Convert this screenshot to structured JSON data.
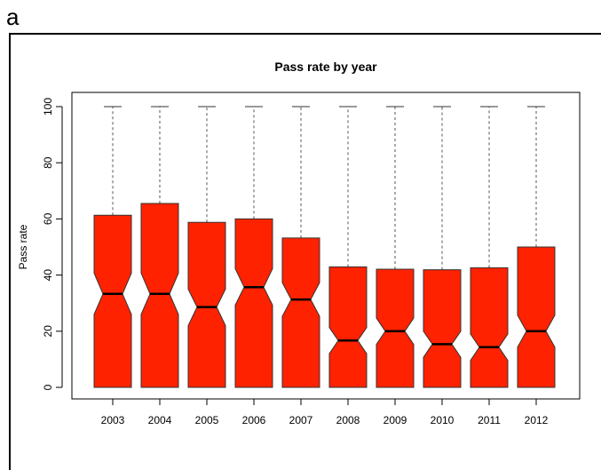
{
  "panel_label": "a",
  "colors": {
    "box_fill": "#ff2200",
    "box_stroke": "#333333",
    "axis": "#000000",
    "whisker": "#555555"
  },
  "chart_data": {
    "type": "box",
    "notched": true,
    "title": "Pass rate by year",
    "xlabel": "",
    "ylabel": "Pass rate",
    "ylim": [
      -4,
      104
    ],
    "yticks": [
      0,
      20,
      40,
      60,
      80,
      100
    ],
    "ytick_labels": [
      "0",
      "20",
      "40",
      "60",
      "80",
      "100"
    ],
    "categories": [
      "2003",
      "2004",
      "2005",
      "2006",
      "2007",
      "2008",
      "2009",
      "2010",
      "2011",
      "2012"
    ],
    "boxes": [
      {
        "category": "2003",
        "min": 0,
        "q1": 0,
        "median": 33.3,
        "q3": 61.3,
        "max": 100,
        "notch_low": 26,
        "notch_high": 40.7
      },
      {
        "category": "2004",
        "min": 0,
        "q1": 0,
        "median": 33.3,
        "q3": 65.5,
        "max": 100,
        "notch_low": 26,
        "notch_high": 40.7
      },
      {
        "category": "2005",
        "min": 0,
        "q1": 0,
        "median": 28.6,
        "q3": 58.8,
        "max": 100,
        "notch_low": 22,
        "notch_high": 35
      },
      {
        "category": "2006",
        "min": 0,
        "q1": 0,
        "median": 35.7,
        "q3": 60,
        "max": 100,
        "notch_low": 29.3,
        "notch_high": 42.3
      },
      {
        "category": "2007",
        "min": 0,
        "q1": 0,
        "median": 31.3,
        "q3": 53.2,
        "max": 100,
        "notch_low": 25.3,
        "notch_high": 37.3
      },
      {
        "category": "2008",
        "min": 0,
        "q1": 0,
        "median": 16.7,
        "q3": 42.9,
        "max": 100,
        "notch_low": 12,
        "notch_high": 21.3
      },
      {
        "category": "2009",
        "min": 0,
        "q1": 0,
        "median": 20,
        "q3": 42.1,
        "max": 100,
        "notch_low": 15.3,
        "notch_high": 24.7
      },
      {
        "category": "2010",
        "min": 0,
        "q1": 0,
        "median": 15.4,
        "q3": 41.9,
        "max": 100,
        "notch_low": 10.7,
        "notch_high": 20
      },
      {
        "category": "2011",
        "min": 0,
        "q1": 0,
        "median": 14.3,
        "q3": 42.6,
        "max": 100,
        "notch_low": 9.6,
        "notch_high": 19
      },
      {
        "category": "2012",
        "min": 0,
        "q1": 0,
        "median": 20,
        "q3": 50,
        "max": 100,
        "notch_low": 14.3,
        "notch_high": 25.7
      }
    ],
    "grid": false,
    "legend": "none"
  }
}
